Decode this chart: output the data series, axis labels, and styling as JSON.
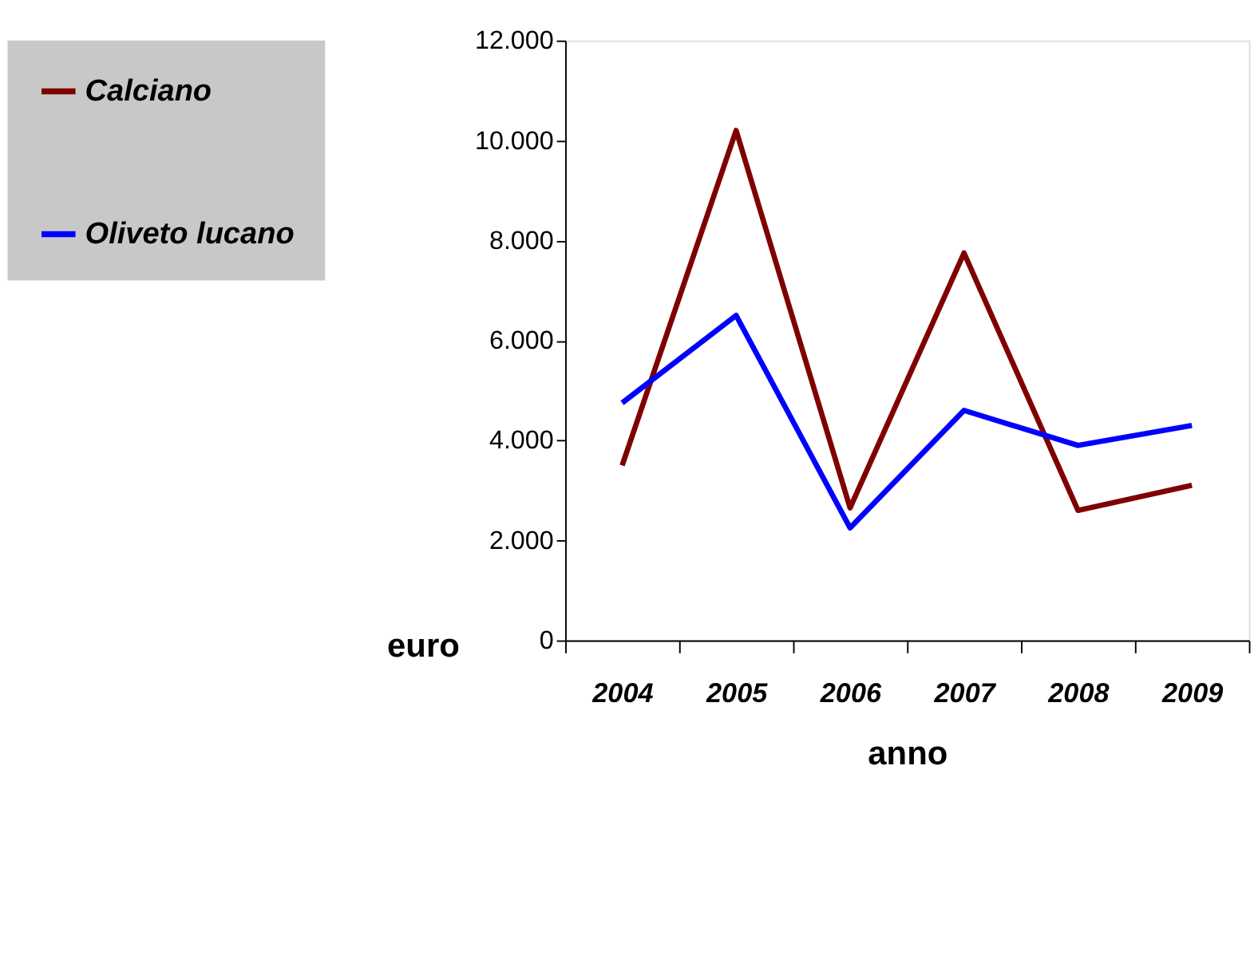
{
  "chart_data": {
    "type": "line",
    "xlabel": "anno",
    "ylabel": "euro",
    "categories": [
      "2004",
      "2005",
      "2006",
      "2007",
      "2008",
      "2009"
    ],
    "series": [
      {
        "name": "Calciano",
        "color": "#800000",
        "values": [
          3500,
          10200,
          2650,
          7750,
          2600,
          3100
        ]
      },
      {
        "name": "Oliveto lucano",
        "color": "#0000ff",
        "values": [
          4750,
          6500,
          2250,
          4600,
          3900,
          4300
        ]
      }
    ],
    "ylim": [
      0,
      12000
    ],
    "yticks": [
      0,
      {
        "value": 2000,
        "label": "2.000"
      },
      {
        "value": 4000,
        "label": "4.000"
      },
      {
        "value": 6000,
        "label": "6.000"
      },
      {
        "value": 8000,
        "label": "8.000"
      },
      {
        "value": 10000,
        "label": "10.000"
      },
      {
        "value": 12000,
        "label": "12.000"
      }
    ],
    "grid": false,
    "legend": "left",
    "marker": "none",
    "line_style": "solid"
  }
}
